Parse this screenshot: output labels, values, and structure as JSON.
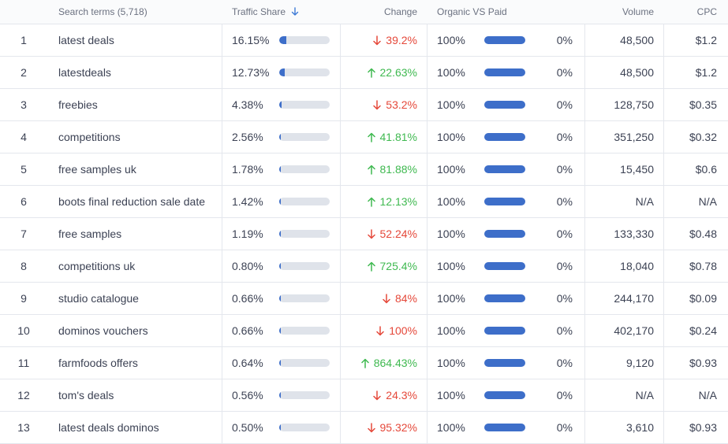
{
  "headers": {
    "search_terms": "Search terms (5,718)",
    "traffic_share": "Traffic Share",
    "change": "Change",
    "organic_vs_paid": "Organic VS Paid",
    "volume": "Volume",
    "cpc": "CPC"
  },
  "colors": {
    "bar_fill": "#3d6ec9",
    "bar_track": "#dfe3ea",
    "change_up": "#3fb950",
    "change_down": "#e5483a",
    "sort_icon": "#3f7bd6"
  },
  "rows": [
    {
      "index": "1",
      "term": "latest deals",
      "share": "16.15%",
      "share_fraction": 0.1615,
      "dir": "down",
      "change": "39.2%",
      "organic": "100%",
      "paid": "0%",
      "volume": "48,500",
      "cpc": "$1.2"
    },
    {
      "index": "2",
      "term": "latestdeals",
      "share": "12.73%",
      "share_fraction": 0.1273,
      "dir": "up",
      "change": "22.63%",
      "organic": "100%",
      "paid": "0%",
      "volume": "48,500",
      "cpc": "$1.2"
    },
    {
      "index": "3",
      "term": "freebies",
      "share": "4.38%",
      "share_fraction": 0.0438,
      "dir": "down",
      "change": "53.2%",
      "organic": "100%",
      "paid": "0%",
      "volume": "128,750",
      "cpc": "$0.35"
    },
    {
      "index": "4",
      "term": "competitions",
      "share": "2.56%",
      "share_fraction": 0.0256,
      "dir": "up",
      "change": "41.81%",
      "organic": "100%",
      "paid": "0%",
      "volume": "351,250",
      "cpc": "$0.32"
    },
    {
      "index": "5",
      "term": "free samples uk",
      "share": "1.78%",
      "share_fraction": 0.0178,
      "dir": "up",
      "change": "81.88%",
      "organic": "100%",
      "paid": "0%",
      "volume": "15,450",
      "cpc": "$0.6"
    },
    {
      "index": "6",
      "term": "boots final reduction sale date",
      "share": "1.42%",
      "share_fraction": 0.0142,
      "dir": "up",
      "change": "12.13%",
      "organic": "100%",
      "paid": "0%",
      "volume": "N/A",
      "cpc": "N/A"
    },
    {
      "index": "7",
      "term": "free samples",
      "share": "1.19%",
      "share_fraction": 0.0119,
      "dir": "down",
      "change": "52.24%",
      "organic": "100%",
      "paid": "0%",
      "volume": "133,330",
      "cpc": "$0.48"
    },
    {
      "index": "8",
      "term": "competitions uk",
      "share": "0.80%",
      "share_fraction": 0.008,
      "dir": "up",
      "change": "725.4%",
      "organic": "100%",
      "paid": "0%",
      "volume": "18,040",
      "cpc": "$0.78"
    },
    {
      "index": "9",
      "term": "studio catalogue",
      "share": "0.66%",
      "share_fraction": 0.0066,
      "dir": "down",
      "change": "84%",
      "organic": "100%",
      "paid": "0%",
      "volume": "244,170",
      "cpc": "$0.09"
    },
    {
      "index": "10",
      "term": "dominos vouchers",
      "share": "0.66%",
      "share_fraction": 0.0066,
      "dir": "down",
      "change": "100%",
      "organic": "100%",
      "paid": "0%",
      "volume": "402,170",
      "cpc": "$0.24"
    },
    {
      "index": "11",
      "term": "farmfoods offers",
      "share": "0.64%",
      "share_fraction": 0.0064,
      "dir": "up",
      "change": "864.43%",
      "organic": "100%",
      "paid": "0%",
      "volume": "9,120",
      "cpc": "$0.93"
    },
    {
      "index": "12",
      "term": "tom's deals",
      "share": "0.56%",
      "share_fraction": 0.0056,
      "dir": "down",
      "change": "24.3%",
      "organic": "100%",
      "paid": "0%",
      "volume": "N/A",
      "cpc": "N/A"
    },
    {
      "index": "13",
      "term": "latest deals dominos",
      "share": "0.50%",
      "share_fraction": 0.005,
      "dir": "down",
      "change": "95.32%",
      "organic": "100%",
      "paid": "0%",
      "volume": "3,610",
      "cpc": "$0.93"
    }
  ]
}
